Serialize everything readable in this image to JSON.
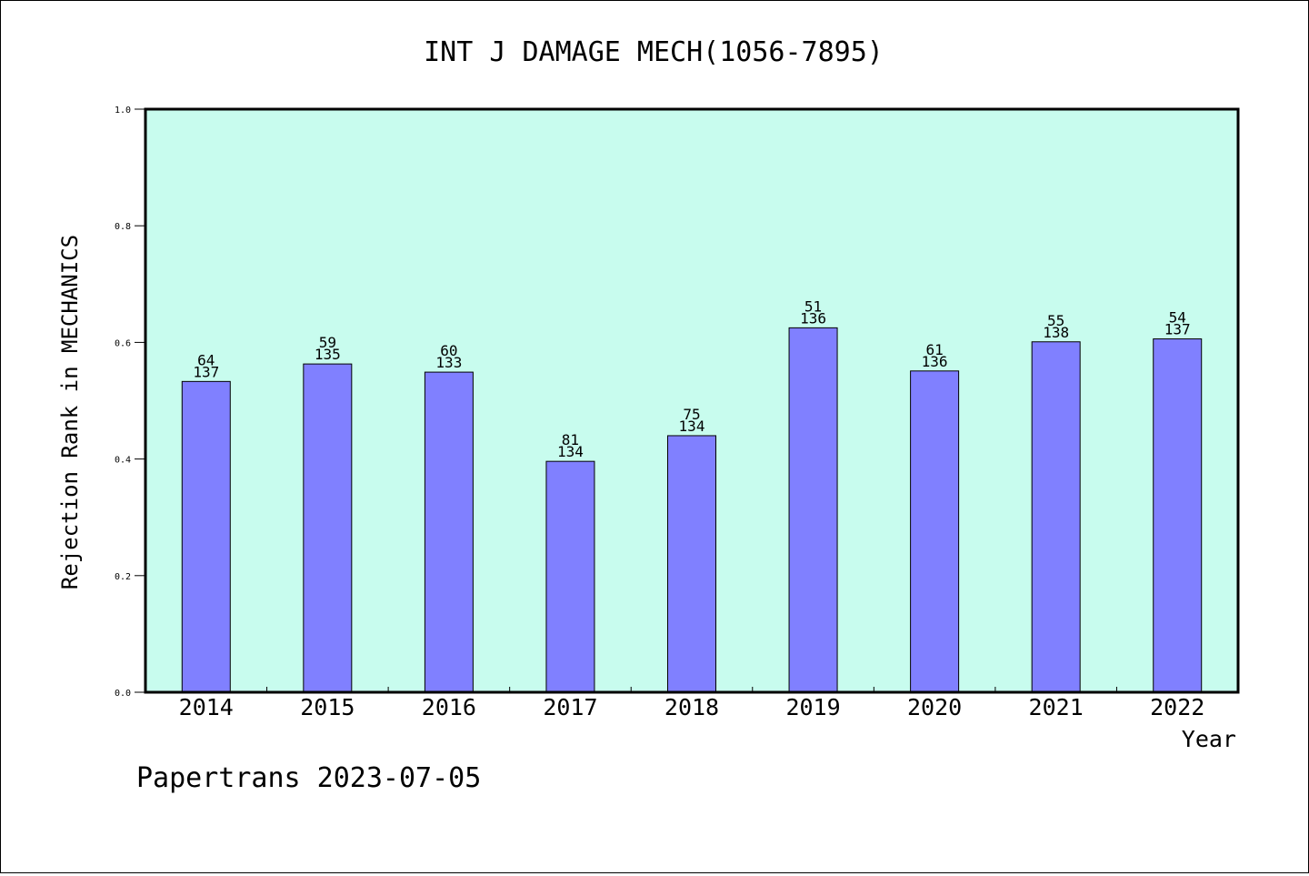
{
  "chart_data": {
    "type": "bar",
    "title": "INT J DAMAGE MECH(1056-7895)",
    "xlabel": "Year",
    "ylabel": "Rejection Rank in MECHANICS",
    "ylim": [
      0,
      1.0
    ],
    "yticks": [
      "0.0",
      "0.2",
      "0.4",
      "0.6",
      "0.8",
      "1.0"
    ],
    "categories": [
      "2014",
      "2015",
      "2016",
      "2017",
      "2018",
      "2019",
      "2020",
      "2021",
      "2022"
    ],
    "values": [
      0.533,
      0.563,
      0.549,
      0.396,
      0.44,
      0.625,
      0.551,
      0.601,
      0.606
    ],
    "rank_labels": [
      "64",
      "59",
      "60",
      "81",
      "75",
      "51",
      "61",
      "55",
      "54"
    ],
    "total_labels": [
      "137",
      "135",
      "133",
      "134",
      "134",
      "136",
      "136",
      "138",
      "137"
    ],
    "grid": false,
    "colors": {
      "plot_background": "#c8fcee",
      "bar_fill": "#8080ff",
      "bar_stroke": "#000000"
    }
  },
  "footer": "Papertrans 2023-07-05"
}
